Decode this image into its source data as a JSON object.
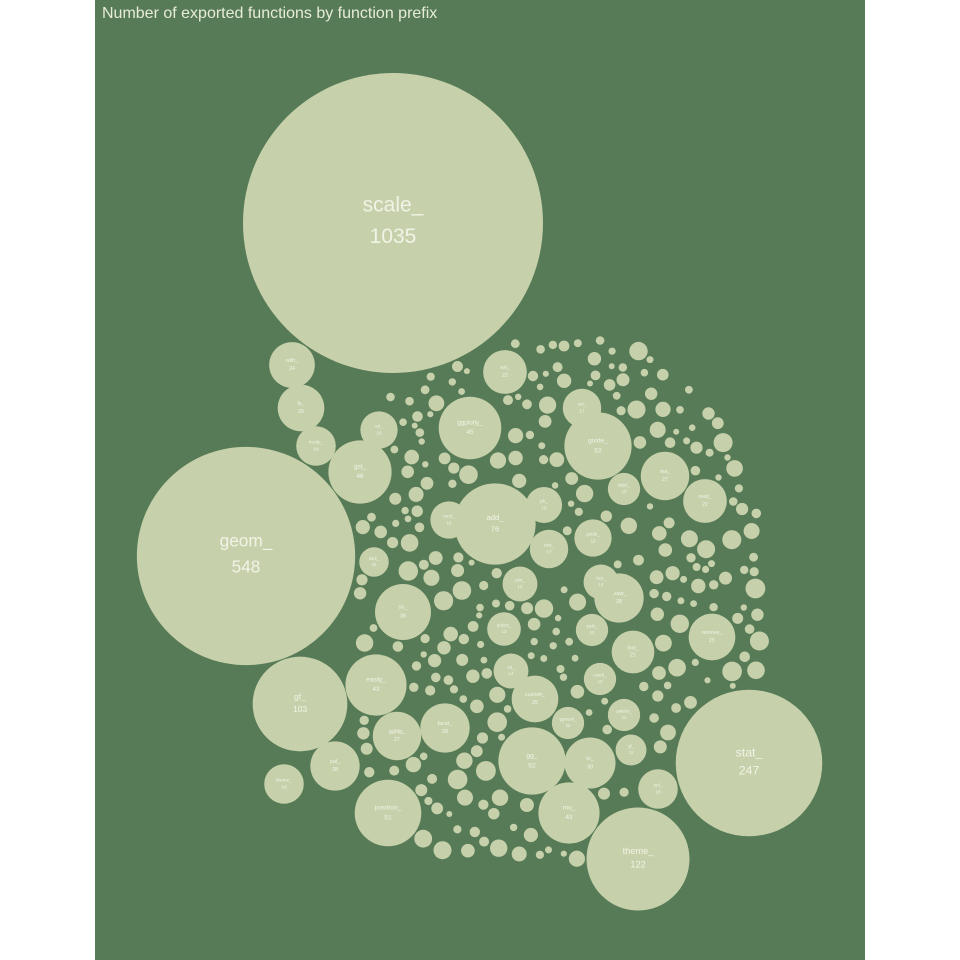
{
  "title": "Number of exported functions by function prefix",
  "colors": {
    "background": "#577b57",
    "bubble": "#c6d1ab",
    "label": "#f1f3e6"
  },
  "chart_data": {
    "type": "bubble",
    "title": "Number of exported functions by function prefix",
    "series": [
      {
        "values": [
          {
            "label": "scale_",
            "value": 1035
          },
          {
            "label": "geom_",
            "value": 548
          },
          {
            "label": "stat_",
            "value": 247
          },
          {
            "label": "theme_",
            "value": 122
          },
          {
            "label": "gf_",
            "value": 103
          },
          {
            "label": "add_",
            "value": 76
          },
          {
            "label": "gg_",
            "value": 52
          },
          {
            "label": "guide_",
            "value": 52
          },
          {
            "label": "position_",
            "value": 51
          },
          {
            "label": "gst_",
            "value": 46
          },
          {
            "label": "ggplotly_",
            "value": 45
          },
          {
            "label": "easily_",
            "value": 43
          },
          {
            "label": "mo_",
            "value": 43
          },
          {
            "label": "ss_",
            "value": 36
          },
          {
            "label": "ts_",
            "value": 30
          },
          {
            "label": "draw_",
            "value": 28
          },
          {
            "label": "facet_",
            "value": 28
          },
          {
            "label": "pal_",
            "value": 28
          },
          {
            "label": "ggblg_",
            "value": 27
          },
          {
            "label": "ma_",
            "value": 27
          },
          {
            "label": "with_",
            "value": 24
          },
          {
            "label": "fs_",
            "value": 25
          },
          {
            "label": "custom_",
            "value": 25
          },
          {
            "label": "remove_",
            "value": 25
          },
          {
            "label": "ext_",
            "value": 22
          },
          {
            "label": "read_",
            "value": 22
          },
          {
            "label": "font_",
            "value": 21
          },
          {
            "label": "mode_",
            "value": 18
          },
          {
            "label": "sel_",
            "value": 18
          },
          {
            "label": "theme_",
            "value": 18
          },
          {
            "label": "set_",
            "value": 17
          },
          {
            "label": "obs_",
            "value": 17
          },
          {
            "label": "rand_",
            "value": 16
          },
          {
            "label": "guide_",
            "value": 16
          },
          {
            "label": "ad_",
            "value": 16
          },
          {
            "label": "ph_",
            "value": 15
          },
          {
            "label": "eq_",
            "value": 14
          },
          {
            "label": "plot_",
            "value": 14
          },
          {
            "label": "key_",
            "value": 14
          },
          {
            "label": "adjust_",
            "value": 13
          },
          {
            "label": "style_",
            "value": 12
          },
          {
            "label": "label_",
            "value": 12
          },
          {
            "label": "coord_",
            "value": 12
          },
          {
            "label": "ggrepel_",
            "value": 12
          },
          {
            "label": "palette_",
            "value": 12
          },
          {
            "label": "gl_",
            "value": 11
          },
          {
            "label": "dark_",
            "value": 10
          }
        ]
      }
    ]
  }
}
